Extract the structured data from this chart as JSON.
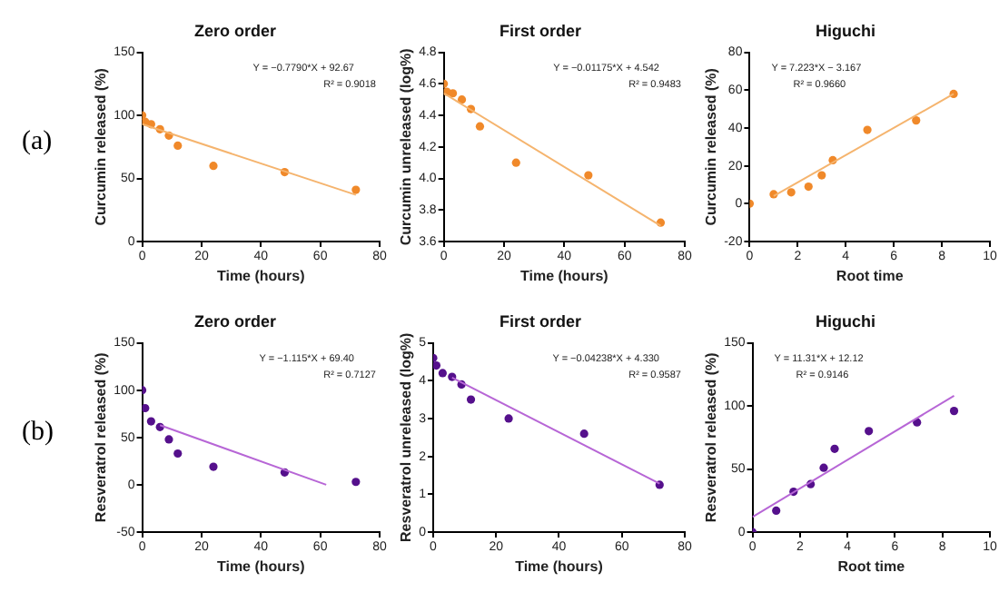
{
  "chart_data": [
    {
      "type": "scatter",
      "title": "Zero order",
      "xlabel": "Time (hours)",
      "ylabel": "Curcumin released (%)",
      "xlim": [
        0,
        80
      ],
      "xticks": [
        0,
        20,
        40,
        60,
        80
      ],
      "ylim": [
        0,
        150
      ],
      "yticks": [
        0,
        50,
        100,
        150
      ],
      "grid": false,
      "legend": false,
      "annotations": [
        "(a)",
        "Y = −0.7790*X + 92.67",
        "R² = 0.9018"
      ],
      "series": [
        {
          "marker": "circle",
          "color": "#f0892a",
          "x": [
            0,
            1,
            3,
            6,
            9,
            12,
            24,
            48,
            72
          ],
          "values": [
            100,
            95,
            93,
            89,
            84,
            76,
            60,
            55,
            41
          ]
        },
        {
          "type": "line",
          "marker": "none",
          "color": "#f5b46e",
          "x": [
            0,
            72
          ],
          "values": [
            93,
            37
          ]
        }
      ]
    },
    {
      "type": "scatter",
      "title": "First order",
      "xlabel": "Time (hours)",
      "ylabel": "Curcumin unreleased (log%)",
      "xlim": [
        0,
        80
      ],
      "xticks": [
        0,
        20,
        40,
        60,
        80
      ],
      "ylim": [
        3.6,
        4.8
      ],
      "yticks": [
        {
          "value": 3.6,
          "label": "3.6"
        },
        {
          "value": 3.8,
          "label": "3.8"
        },
        {
          "value": 4,
          "label": "4.0"
        },
        {
          "value": 4.2,
          "label": "4.2"
        },
        {
          "value": 4.4,
          "label": "4.4"
        },
        {
          "value": 4.6,
          "label": "4.6"
        },
        {
          "value": 4.8,
          "label": "4.8"
        }
      ],
      "grid": false,
      "legend": false,
      "annotations": [
        "Y = −0.01175*X + 4.542",
        "R² = 0.9483"
      ],
      "series": [
        {
          "marker": "circle",
          "color": "#f0892a",
          "x": [
            0,
            1,
            3,
            6,
            9,
            12,
            24,
            48,
            72
          ],
          "values": [
            4.6,
            4.55,
            4.54,
            4.5,
            4.44,
            4.33,
            4.1,
            4.02,
            3.72
          ]
        },
        {
          "type": "line",
          "marker": "none",
          "color": "#f5b46e",
          "x": [
            0,
            72
          ],
          "values": [
            4.54,
            3.7
          ]
        }
      ]
    },
    {
      "type": "scatter",
      "title": "Higuchi",
      "xlabel": "Root time",
      "ylabel": "Curcumin released (%)",
      "xlim": [
        0,
        10
      ],
      "xticks": [
        0,
        2,
        4,
        6,
        8,
        10
      ],
      "ylim": [
        -20,
        80
      ],
      "yticks": [
        -20,
        0,
        20,
        40,
        60,
        80
      ],
      "grid": false,
      "legend": false,
      "annotations": [
        "Y = 7.223*X − 3.167",
        "R² = 0.9660"
      ],
      "series": [
        {
          "marker": "circle",
          "color": "#f0892a",
          "x": [
            0,
            1,
            1.73,
            2.45,
            3,
            3.46,
            4.9,
            6.93,
            8.49
          ],
          "values": [
            0,
            5,
            6,
            9,
            15,
            23,
            39,
            44,
            58
          ]
        },
        {
          "type": "line",
          "marker": "none",
          "color": "#f5b46e",
          "x": [
            1,
            8.49
          ],
          "values": [
            4,
            58
          ]
        }
      ]
    },
    {
      "type": "scatter",
      "title": "Zero order",
      "xlabel": "Time (hours)",
      "ylabel": "Resveratrol released (%)",
      "xlim": [
        0,
        80
      ],
      "xticks": [
        0,
        20,
        40,
        60,
        80
      ],
      "ylim": [
        -50,
        150
      ],
      "yticks": [
        -50,
        0,
        50,
        100,
        150
      ],
      "grid": false,
      "legend": false,
      "annotations": [
        "(b)",
        "Y = −1.115*X + 69.40",
        "R² = 0.7127"
      ],
      "series": [
        {
          "marker": "circle",
          "color": "#55108c",
          "x": [
            0,
            1,
            3,
            6,
            9,
            12,
            24,
            48,
            72
          ],
          "values": [
            100,
            81,
            67,
            61,
            48,
            33,
            19,
            13,
            3
          ]
        },
        {
          "type": "line",
          "marker": "none",
          "color": "#b766d6",
          "x": [
            6,
            62
          ],
          "values": [
            63,
            0
          ]
        }
      ]
    },
    {
      "type": "scatter",
      "title": "First order",
      "xlabel": "Time (hours)",
      "ylabel": "Resveratrol unreleased (log%)",
      "xlim": [
        0,
        80
      ],
      "xticks": [
        0,
        20,
        40,
        60,
        80
      ],
      "ylim": [
        0,
        5
      ],
      "yticks": [
        0,
        1,
        2,
        3,
        4,
        5
      ],
      "grid": false,
      "legend": false,
      "annotations": [
        "Y = −0.04238*X + 4.330",
        "R² = 0.9587"
      ],
      "series": [
        {
          "marker": "circle",
          "color": "#55108c",
          "x": [
            0,
            1,
            3,
            6,
            9,
            12,
            24,
            48,
            72
          ],
          "values": [
            4.6,
            4.4,
            4.2,
            4.1,
            3.9,
            3.5,
            3,
            2.6,
            1.25
          ]
        },
        {
          "type": "line",
          "marker": "none",
          "color": "#b766d6",
          "x": [
            6,
            72
          ],
          "values": [
            4.08,
            1.28
          ]
        }
      ]
    },
    {
      "type": "scatter",
      "title": "Higuchi",
      "xlabel": "Root time",
      "ylabel": "Resveratrol released (%)",
      "xlim": [
        0,
        10
      ],
      "xticks": [
        0,
        2,
        4,
        6,
        8,
        10
      ],
      "ylim": [
        0,
        150
      ],
      "yticks": [
        0,
        50,
        100,
        150
      ],
      "grid": false,
      "legend": false,
      "annotations": [
        "Y = 11.31*X + 12.12",
        "R² = 0.9146"
      ],
      "series": [
        {
          "marker": "circle",
          "color": "#55108c",
          "x": [
            0,
            1,
            1.73,
            2.45,
            3,
            3.46,
            4.9,
            6.93,
            8.49
          ],
          "values": [
            0,
            17,
            32,
            38,
            51,
            66,
            80,
            87,
            96
          ]
        },
        {
          "type": "line",
          "marker": "none",
          "color": "#b766d6",
          "x": [
            0,
            8.49
          ],
          "values": [
            12,
            108
          ]
        }
      ]
    }
  ]
}
